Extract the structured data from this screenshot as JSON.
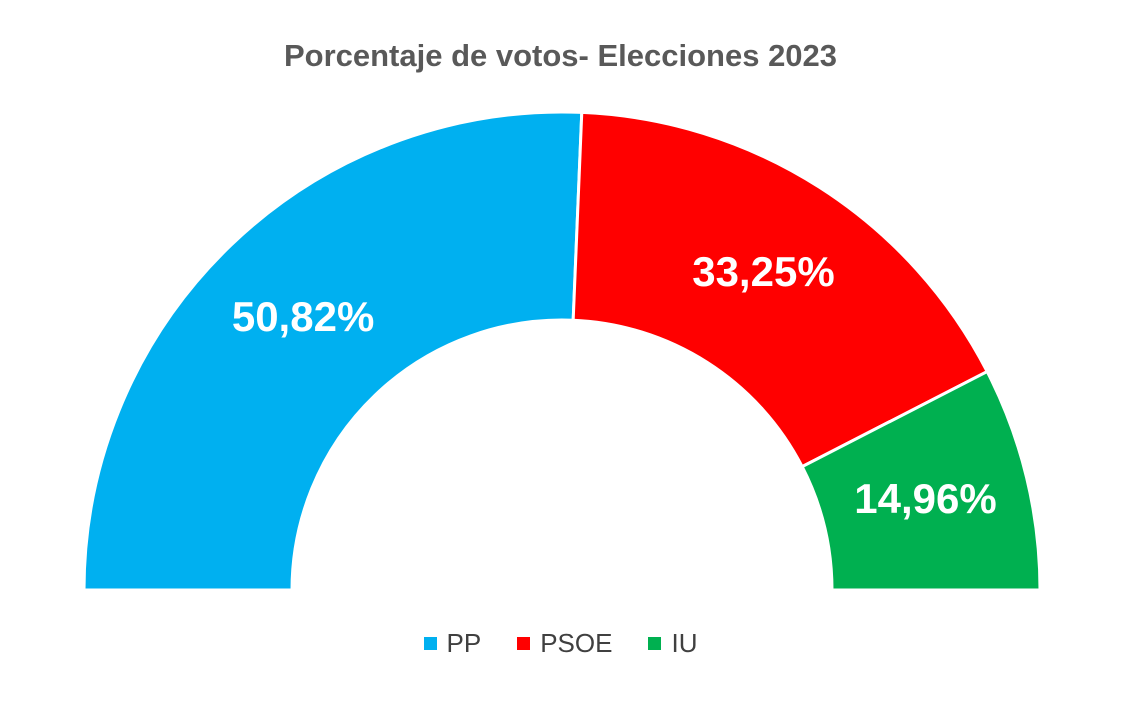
{
  "chart_data": {
    "type": "pie",
    "variant": "half-donut",
    "title": "Porcentaje de votos- Elecciones 2023",
    "categories": [
      "PP",
      "PSOE",
      "IU"
    ],
    "values": [
      50.82,
      33.25,
      14.96
    ],
    "data_labels": [
      "50,82%",
      "33,25%",
      "14,96%"
    ],
    "colors": [
      "#00B0F0",
      "#FF0000",
      "#00B050"
    ],
    "legend_position": "bottom"
  }
}
